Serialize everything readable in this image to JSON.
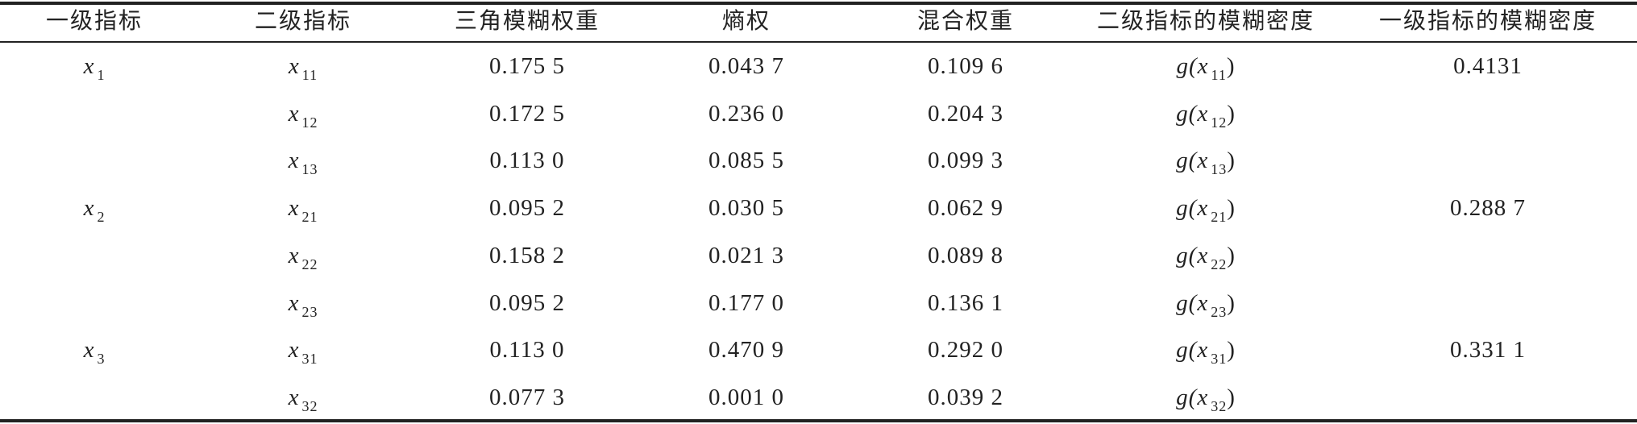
{
  "table": {
    "header": [
      "一级指标",
      "二级指标",
      "三角模糊权重",
      "熵权",
      "混合权重",
      "二级指标的模糊密度",
      "一级指标的模糊密度"
    ],
    "rows": [
      {
        "level1": {
          "base": "x",
          "sub": "1"
        },
        "level2": {
          "base": "x",
          "sub": "11"
        },
        "triangular": "0.175 5",
        "entropy": "0.043 7",
        "mixed": "0.109 6",
        "density2": {
          "func": "g(",
          "base": "x",
          "sub": "11",
          "close": ")"
        },
        "density1": "0.4131"
      },
      {
        "level1": null,
        "level2": {
          "base": "x",
          "sub": "12"
        },
        "triangular": "0.172 5",
        "entropy": "0.236 0",
        "mixed": "0.204 3",
        "density2": {
          "func": "g(",
          "base": "x",
          "sub": "12",
          "close": ")"
        },
        "density1": null
      },
      {
        "level1": null,
        "level2": {
          "base": "x",
          "sub": "13"
        },
        "triangular": "0.113 0",
        "entropy": "0.085 5",
        "mixed": "0.099 3",
        "density2": {
          "func": "g(",
          "base": "x",
          "sub": "13",
          "close": ")"
        },
        "density1": null
      },
      {
        "level1": {
          "base": "x",
          "sub": "2"
        },
        "level2": {
          "base": "x",
          "sub": "21"
        },
        "triangular": "0.095 2",
        "entropy": "0.030 5",
        "mixed": "0.062 9",
        "density2": {
          "func": "g(",
          "base": "x",
          "sub": "21",
          "close": ")"
        },
        "density1": "0.288 7"
      },
      {
        "level1": null,
        "level2": {
          "base": "x",
          "sub": "22"
        },
        "triangular": "0.158 2",
        "entropy": "0.021 3",
        "mixed": "0.089 8",
        "density2": {
          "func": "g(",
          "base": "x",
          "sub": "22",
          "close": ")"
        },
        "density1": null
      },
      {
        "level1": null,
        "level2": {
          "base": "x",
          "sub": "23"
        },
        "triangular": "0.095 2",
        "entropy": "0.177 0",
        "mixed": "0.136 1",
        "density2": {
          "func": "g(",
          "base": "x",
          "sub": "23",
          "close": ")"
        },
        "density1": null
      },
      {
        "level1": {
          "base": "x",
          "sub": "3"
        },
        "level2": {
          "base": "x",
          "sub": "31"
        },
        "triangular": "0.113 0",
        "entropy": "0.470 9",
        "mixed": "0.292 0",
        "density2": {
          "func": "g(",
          "base": "x",
          "sub": "31",
          "close": ")"
        },
        "density1": "0.331 1"
      },
      {
        "level1": null,
        "level2": {
          "base": "x",
          "sub": "32"
        },
        "triangular": "0.077 3",
        "entropy": "0.001 0",
        "mixed": "0.039 2",
        "density2": {
          "func": "g(",
          "base": "x",
          "sub": "32",
          "close": ")"
        },
        "density1": null
      }
    ]
  }
}
